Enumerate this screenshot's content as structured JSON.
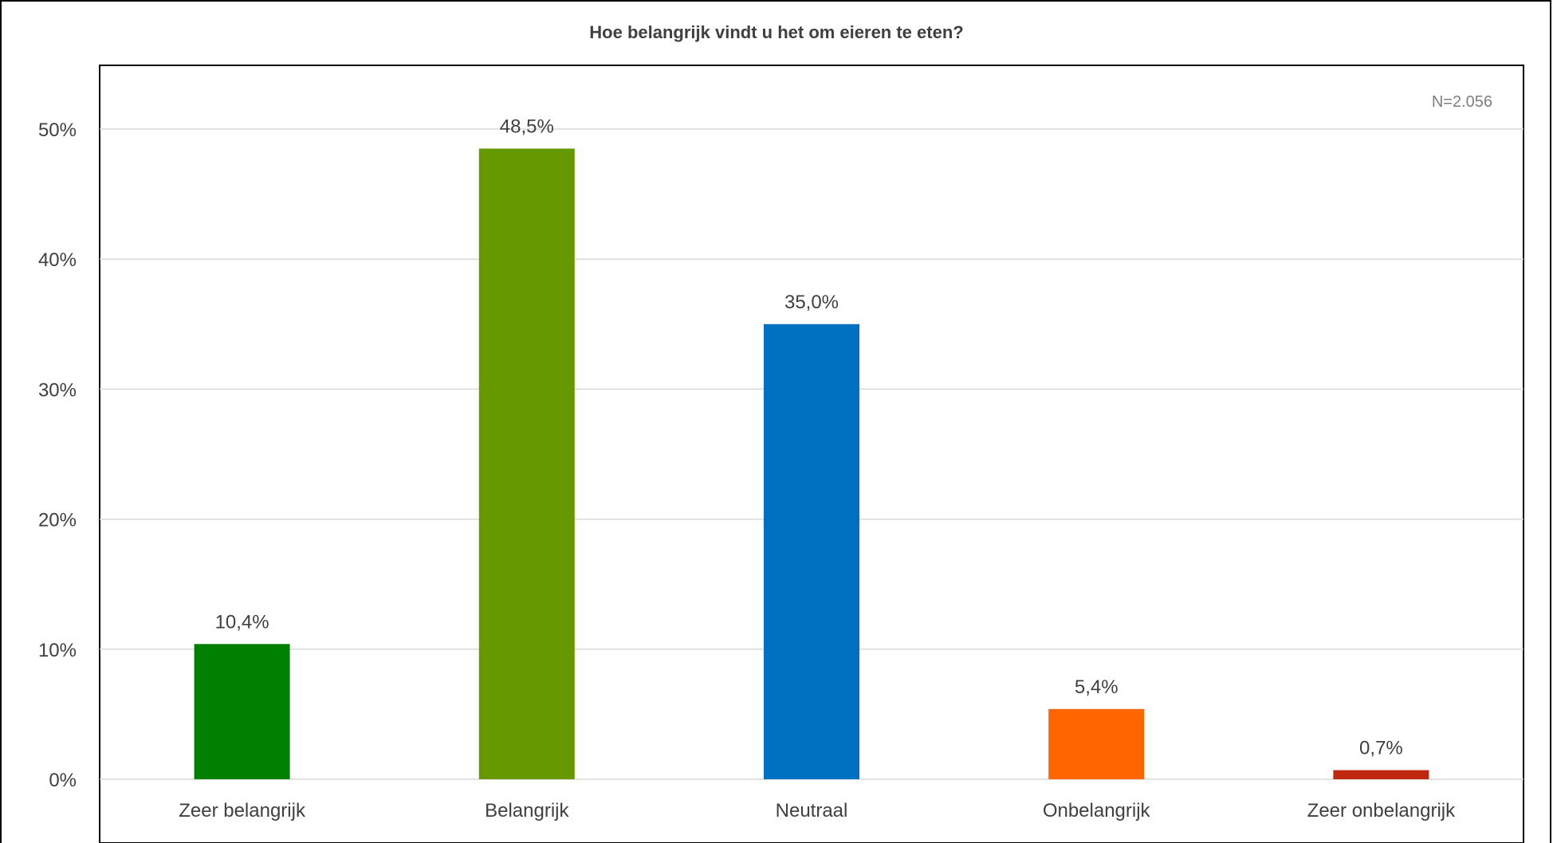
{
  "chart_data": {
    "type": "bar",
    "title": "Hoe belangrijk vindt u het om eieren te eten?",
    "annotation": "N=2.056",
    "categories": [
      "Zeer belangrijk",
      "Belangrijk",
      "Neutraal",
      "Onbelangrijk",
      "Zeer onbelangrijk"
    ],
    "values": [
      10.4,
      48.5,
      35.0,
      5.4,
      0.7
    ],
    "value_labels": [
      "10,4%",
      "48,5%",
      "35,0%",
      "5,4%",
      "0,7%"
    ],
    "colors": [
      "#008000",
      "#669900",
      "#0070C0",
      "#FF6600",
      "#C0270F"
    ],
    "yticks": [
      0,
      10,
      20,
      30,
      40,
      50
    ],
    "ytick_labels": [
      "0%",
      "10%",
      "20%",
      "30%",
      "40%",
      "50%"
    ],
    "ylim": [
      0,
      50
    ],
    "xlabel": "",
    "ylabel": "",
    "grid": true,
    "legend": "none"
  }
}
